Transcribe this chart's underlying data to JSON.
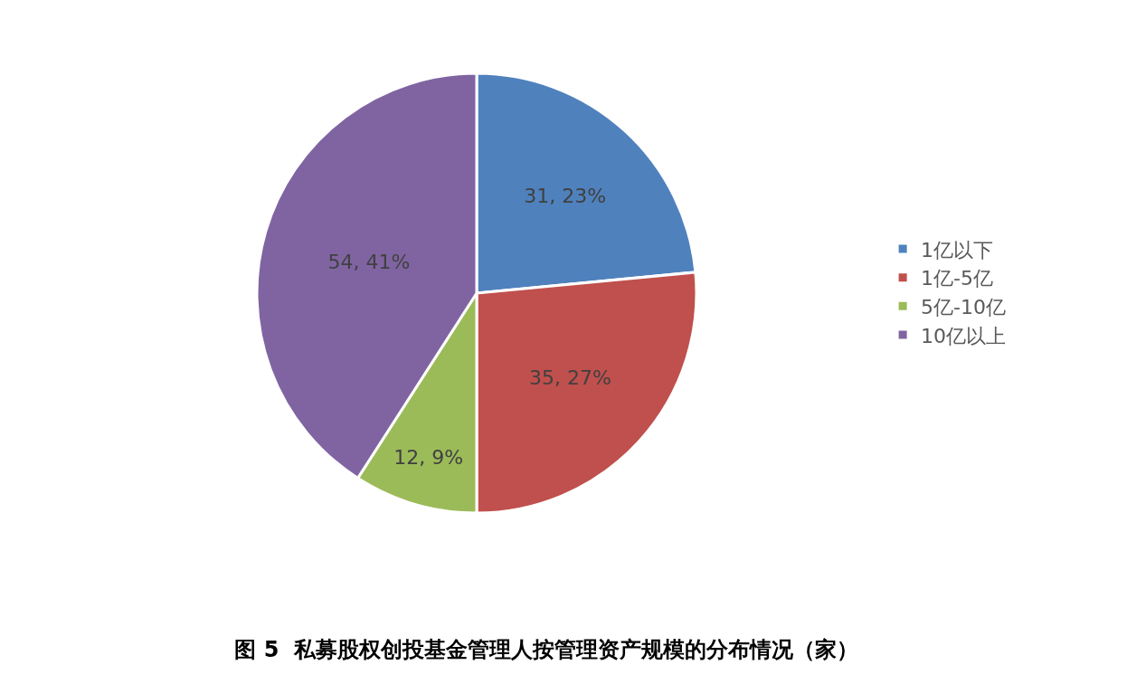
{
  "chart_data": {
    "type": "pie",
    "title": "图 5  私募股权创投基金管理人按管理资产规模的分布情况（家）",
    "categories": [
      "1亿以下",
      "1亿-5亿",
      "5亿-10亿",
      "10亿以上"
    ],
    "values": [
      31,
      35,
      12,
      54
    ],
    "value_labels": [
      "31, 23%",
      "35, 27%",
      "12, 9%",
      "54, 41%"
    ],
    "colors": [
      "#4f81bd",
      "#c0504d",
      "#9bbb59",
      "#8064a2"
    ],
    "legend": "right"
  }
}
